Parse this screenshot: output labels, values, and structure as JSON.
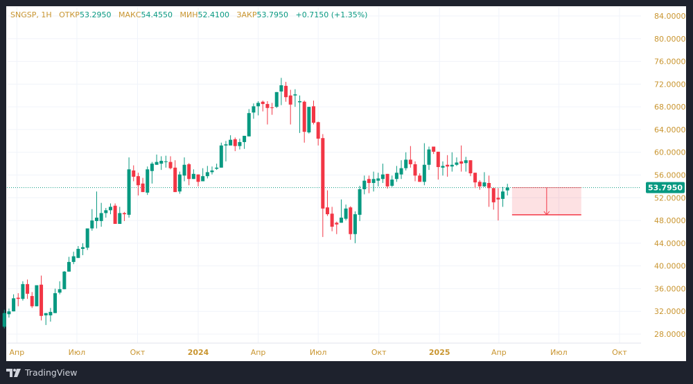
{
  "header": {
    "symbol": "SNGSP, 1Н",
    "open_label": "ОТКР",
    "open": "53.2950",
    "high_label": "МАКС",
    "high": "54.4550",
    "low_label": "МИН",
    "low": "52.4100",
    "close_label": "ЗАКР",
    "close": "53.7950",
    "change": "+0.7150 (+1.35%)"
  },
  "branding": {
    "logo_text": "TradingView"
  },
  "colors": {
    "up": "#089981",
    "down": "#f23645",
    "axis_text": "#c9952f",
    "grid": "#f0f3fa",
    "last_price_bg": "#089981",
    "target_zone": "#f23645"
  },
  "chart_data": {
    "type": "candlestick",
    "title": "SNGSP, 1Н",
    "ylim": [
      28,
      84
    ],
    "y_ticks": [
      "84.0000",
      "80.0000",
      "76.0000",
      "72.0000",
      "68.0000",
      "64.0000",
      "60.0000",
      "56.0000",
      "52.0000",
      "48.0000",
      "44.0000",
      "40.0000",
      "36.0000",
      "32.0000",
      "28.0000"
    ],
    "x_ticks": [
      {
        "label": "Апр",
        "date": "2023-04-01"
      },
      {
        "label": "Июл",
        "date": "2023-07-01"
      },
      {
        "label": "Окт",
        "date": "2023-10-01"
      },
      {
        "label": "2024",
        "date": "2024-01-01",
        "year": true
      },
      {
        "label": "Апр",
        "date": "2024-04-01"
      },
      {
        "label": "Июл",
        "date": "2024-07-01"
      },
      {
        "label": "Окт",
        "date": "2024-10-01"
      },
      {
        "label": "2025",
        "date": "2025-01-01",
        "year": true
      },
      {
        "label": "Апр",
        "date": "2025-04-01"
      },
      {
        "label": "Июл",
        "date": "2025-07-01"
      },
      {
        "label": "Окт",
        "date": "2025-10-01"
      }
    ],
    "grid": true,
    "last_price": "53.7950",
    "last_price_value": 53.795,
    "columns": [
      "date",
      "open",
      "high",
      "low",
      "close"
    ],
    "candles": [
      [
        "2023-03-13",
        29.3,
        32.3,
        29.0,
        31.7
      ],
      [
        "2023-03-20",
        31.5,
        32.5,
        30.9,
        32.0
      ],
      [
        "2023-03-27",
        32.0,
        35.0,
        32.0,
        34.3
      ],
      [
        "2023-04-03",
        34.4,
        35.2,
        32.9,
        34.2
      ],
      [
        "2023-04-10",
        34.2,
        37.3,
        33.9,
        36.8
      ],
      [
        "2023-04-17",
        36.8,
        37.6,
        34.2,
        35.1
      ],
      [
        "2023-04-24",
        34.7,
        35.4,
        32.6,
        32.9
      ],
      [
        "2023-05-01",
        32.9,
        36.6,
        32.9,
        36.6
      ],
      [
        "2023-05-08",
        36.7,
        38.3,
        30.4,
        31.2
      ],
      [
        "2023-05-15",
        31.3,
        31.7,
        29.6,
        31.7
      ],
      [
        "2023-05-22",
        31.3,
        32.6,
        30.2,
        31.9
      ],
      [
        "2023-05-29",
        31.7,
        36.0,
        31.7,
        35.2
      ],
      [
        "2023-06-05",
        35.3,
        37.3,
        35.0,
        35.9
      ],
      [
        "2023-06-12",
        35.9,
        39.1,
        35.9,
        39.0
      ],
      [
        "2023-06-19",
        39.0,
        41.6,
        39.0,
        40.7
      ],
      [
        "2023-06-26",
        40.7,
        42.5,
        40.3,
        41.7
      ],
      [
        "2023-07-03",
        41.4,
        43.5,
        41.4,
        43.0
      ],
      [
        "2023-07-10",
        43.0,
        44.0,
        41.9,
        43.3
      ],
      [
        "2023-07-17",
        43.2,
        46.6,
        42.8,
        46.6
      ],
      [
        "2023-07-24",
        46.6,
        50.0,
        46.2,
        48.0
      ],
      [
        "2023-07-31",
        47.9,
        53.1,
        46.6,
        48.5
      ],
      [
        "2023-08-07",
        47.9,
        51.1,
        46.9,
        49.3
      ],
      [
        "2023-08-14",
        49.3,
        50.2,
        48.5,
        49.8
      ],
      [
        "2023-08-21",
        49.8,
        51.0,
        49.1,
        50.4
      ],
      [
        "2023-08-28",
        50.6,
        51.0,
        47.4,
        47.4
      ],
      [
        "2023-09-04",
        47.4,
        50.4,
        47.4,
        49.3
      ],
      [
        "2023-09-11",
        49.3,
        49.5,
        47.9,
        49.1
      ],
      [
        "2023-09-18",
        49.0,
        59.1,
        48.5,
        57.0
      ],
      [
        "2023-09-25",
        56.8,
        57.7,
        54.9,
        55.7
      ],
      [
        "2023-10-02",
        55.8,
        56.4,
        52.4,
        54.2
      ],
      [
        "2023-10-09",
        54.5,
        55.5,
        53.0,
        53.0
      ],
      [
        "2023-10-16",
        52.9,
        57.5,
        52.5,
        57.0
      ],
      [
        "2023-10-23",
        56.7,
        58.3,
        54.5,
        58.0
      ],
      [
        "2023-10-30",
        57.8,
        59.6,
        57.8,
        58.3
      ],
      [
        "2023-11-06",
        58.0,
        59.3,
        56.9,
        58.5
      ],
      [
        "2023-11-13",
        58.3,
        59.4,
        57.3,
        58.4
      ],
      [
        "2023-11-20",
        58.3,
        59.3,
        57.0,
        57.2
      ],
      [
        "2023-11-27",
        57.3,
        58.6,
        53.0,
        53.0
      ],
      [
        "2023-12-04",
        53.1,
        56.6,
        52.7,
        56.1
      ],
      [
        "2023-12-11",
        55.9,
        59.1,
        54.9,
        57.8
      ],
      [
        "2023-12-18",
        57.9,
        58.1,
        54.2,
        55.3
      ],
      [
        "2023-12-25",
        55.3,
        57.0,
        55.3,
        56.2
      ],
      [
        "2024-01-01",
        56.1,
        56.1,
        54.0,
        54.8
      ],
      [
        "2024-01-08",
        54.9,
        57.2,
        54.9,
        55.8
      ],
      [
        "2024-01-15",
        55.8,
        57.6,
        55.4,
        56.5
      ],
      [
        "2024-01-22",
        56.5,
        57.5,
        56.1,
        56.8
      ],
      [
        "2024-01-29",
        57.1,
        58.0,
        56.9,
        57.3
      ],
      [
        "2024-02-05",
        57.3,
        61.7,
        57.3,
        61.2
      ],
      [
        "2024-02-12",
        61.2,
        62.0,
        58.4,
        61.4
      ],
      [
        "2024-02-19",
        61.2,
        63.0,
        61.2,
        62.2
      ],
      [
        "2024-02-26",
        62.3,
        62.6,
        60.2,
        61.1
      ],
      [
        "2024-03-04",
        61.1,
        62.4,
        60.5,
        61.8
      ],
      [
        "2024-03-11",
        61.8,
        62.9,
        60.6,
        62.9
      ],
      [
        "2024-03-18",
        62.8,
        67.6,
        62.8,
        66.9
      ],
      [
        "2024-03-25",
        67.0,
        68.6,
        65.9,
        68.1
      ],
      [
        "2024-04-01",
        68.1,
        69.0,
        66.5,
        68.7
      ],
      [
        "2024-04-08",
        68.9,
        69.1,
        67.2,
        68.5
      ],
      [
        "2024-04-15",
        68.5,
        69.0,
        64.9,
        67.8
      ],
      [
        "2024-04-22",
        67.9,
        68.7,
        66.6,
        67.8
      ],
      [
        "2024-04-29",
        68.0,
        70.6,
        67.8,
        70.6
      ],
      [
        "2024-05-06",
        70.7,
        73.1,
        68.3,
        71.8
      ],
      [
        "2024-05-13",
        71.7,
        72.4,
        68.9,
        69.7
      ],
      [
        "2024-05-20",
        70.0,
        71.0,
        64.9,
        68.4
      ],
      [
        "2024-05-27",
        70.0,
        71.1,
        68.0,
        70.2
      ],
      [
        "2024-06-03",
        68.8,
        70.0,
        63.4,
        69.0
      ],
      [
        "2024-06-10",
        68.9,
        69.1,
        61.7,
        63.6
      ],
      [
        "2024-06-17",
        63.5,
        68.0,
        63.3,
        68.0
      ],
      [
        "2024-06-24",
        68.1,
        69.1,
        64.9,
        65.2
      ],
      [
        "2024-07-01",
        65.3,
        65.4,
        61.2,
        62.4
      ],
      [
        "2024-07-08",
        62.5,
        63.2,
        45.1,
        50.1
      ],
      [
        "2024-07-15",
        50.3,
        53.3,
        48.8,
        49.1
      ],
      [
        "2024-07-22",
        49.2,
        50.4,
        46.1,
        46.9
      ],
      [
        "2024-07-29",
        47.6,
        47.8,
        45.6,
        47.3
      ],
      [
        "2024-08-05",
        47.6,
        51.7,
        47.6,
        48.5
      ],
      [
        "2024-08-12",
        48.3,
        50.8,
        48.0,
        50.1
      ],
      [
        "2024-08-19",
        50.3,
        50.5,
        44.6,
        45.6
      ],
      [
        "2024-08-26",
        45.6,
        49.6,
        44.0,
        49.1
      ],
      [
        "2024-09-02",
        49.0,
        54.1,
        47.9,
        53.5
      ],
      [
        "2024-09-09",
        53.5,
        55.9,
        52.6,
        55.0
      ],
      [
        "2024-09-16",
        55.3,
        55.9,
        52.8,
        54.6
      ],
      [
        "2024-09-23",
        54.6,
        56.6,
        53.1,
        55.3
      ],
      [
        "2024-09-30",
        55.0,
        56.4,
        54.0,
        55.4
      ],
      [
        "2024-10-07",
        55.3,
        58.0,
        54.6,
        56.1
      ],
      [
        "2024-10-14",
        56.2,
        56.2,
        53.6,
        54.0
      ],
      [
        "2024-10-21",
        54.1,
        55.9,
        53.9,
        55.2
      ],
      [
        "2024-10-28",
        55.3,
        57.6,
        54.8,
        56.4
      ],
      [
        "2024-11-04",
        56.1,
        58.6,
        55.3,
        57.2
      ],
      [
        "2024-11-11",
        57.2,
        60.0,
        56.8,
        58.7
      ],
      [
        "2024-11-18",
        58.7,
        61.1,
        57.3,
        57.9
      ],
      [
        "2024-11-25",
        57.9,
        58.4,
        54.9,
        55.9
      ],
      [
        "2024-12-02",
        55.9,
        56.3,
        54.8,
        54.8
      ],
      [
        "2024-12-09",
        54.8,
        61.6,
        54.2,
        57.8
      ],
      [
        "2024-12-16",
        57.8,
        61.0,
        56.9,
        60.5
      ],
      [
        "2024-12-23",
        61.0,
        61.0,
        59.7,
        60.1
      ],
      [
        "2024-12-30",
        60.1,
        60.1,
        55.2,
        57.4
      ],
      [
        "2025-01-06",
        57.3,
        58.4,
        55.9,
        57.6
      ],
      [
        "2025-01-13",
        57.8,
        59.5,
        55.7,
        57.5
      ],
      [
        "2025-01-20",
        57.5,
        60.0,
        56.6,
        57.8
      ],
      [
        "2025-01-27",
        57.8,
        59.1,
        57.6,
        58.2
      ],
      [
        "2025-02-03",
        58.4,
        61.2,
        56.6,
        58.0
      ],
      [
        "2025-02-10",
        58.1,
        59.2,
        56.6,
        58.6
      ],
      [
        "2025-02-17",
        58.6,
        58.6,
        55.8,
        56.3
      ],
      [
        "2025-02-24",
        56.4,
        56.4,
        53.7,
        54.7
      ],
      [
        "2025-03-03",
        54.8,
        55.1,
        53.4,
        54.0
      ],
      [
        "2025-03-10",
        54.0,
        56.5,
        53.9,
        54.7
      ],
      [
        "2025-03-17",
        54.6,
        55.9,
        50.4,
        53.7
      ],
      [
        "2025-03-24",
        53.7,
        53.7,
        49.9,
        51.2
      ],
      [
        "2025-03-31",
        52.0,
        53.7,
        48.0,
        51.7
      ],
      [
        "2025-04-07",
        51.8,
        53.9,
        50.4,
        53.1
      ],
      [
        "2025-04-14",
        53.295,
        54.455,
        52.41,
        53.795
      ]
    ],
    "drawings": [
      {
        "type": "target-zone",
        "direction": "down",
        "from_price": 53.795,
        "to_price": 49.0,
        "start_date": "2025-04-21",
        "end_date": "2025-08-04"
      }
    ]
  }
}
